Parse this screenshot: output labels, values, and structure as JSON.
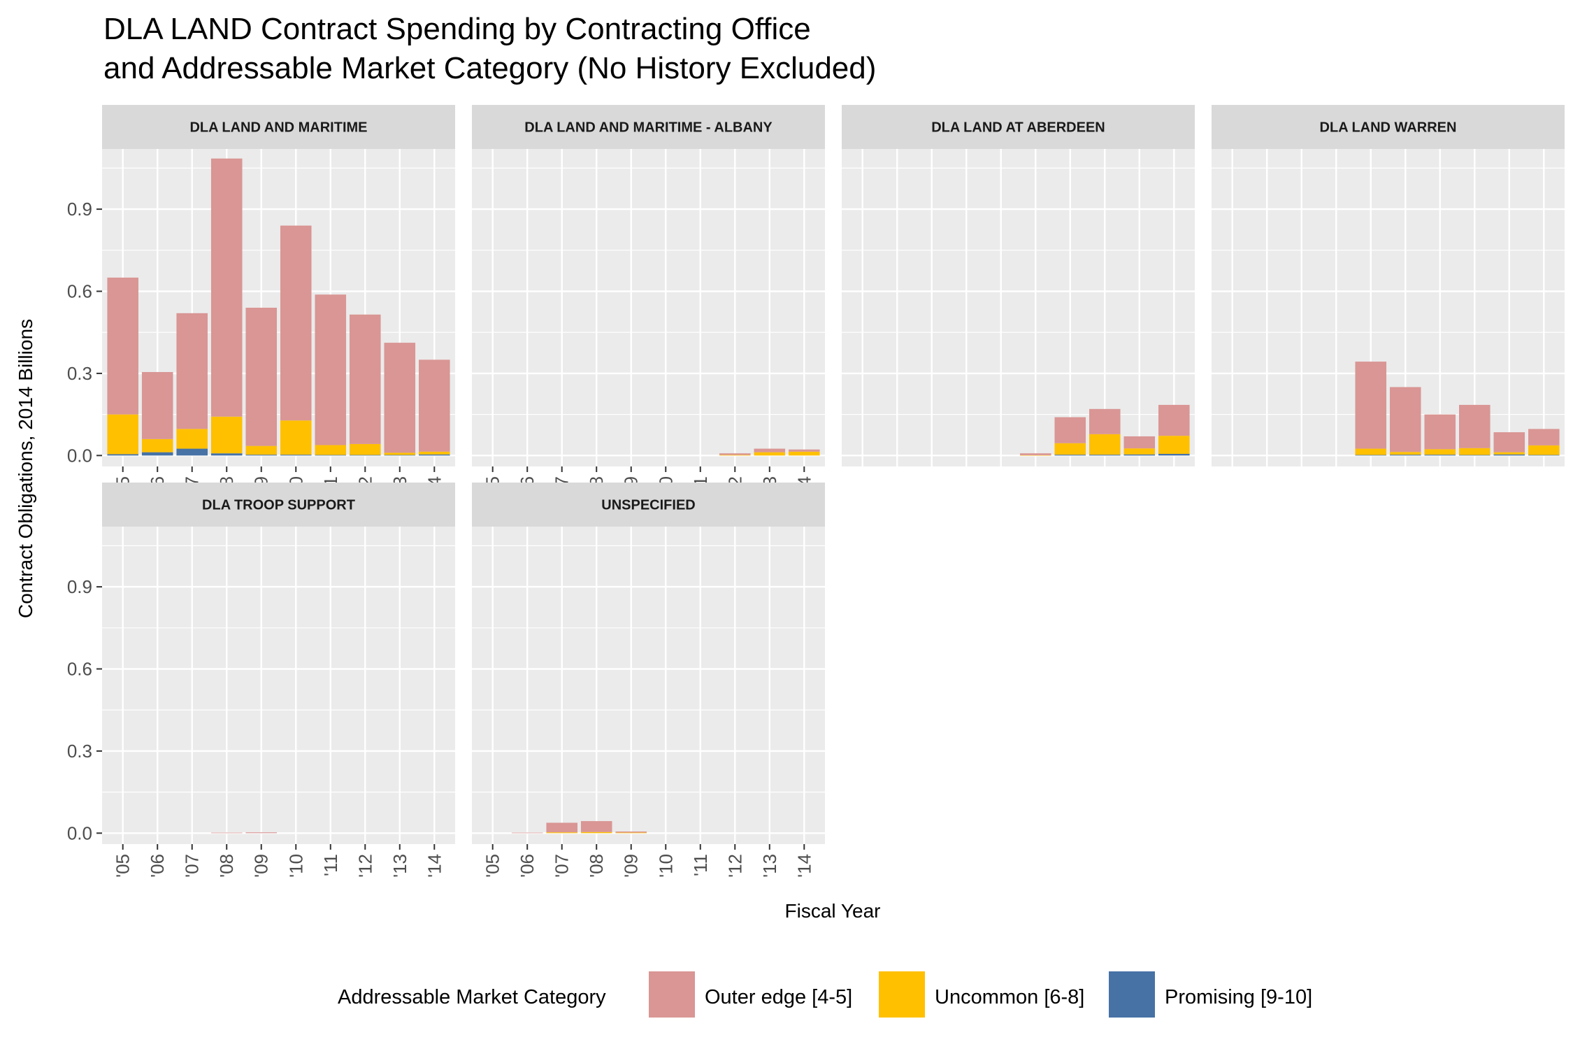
{
  "chart_data": {
    "type": "bar",
    "stacked": true,
    "facet_layout": "4 columns x 2 rows",
    "title_lines": [
      "DLA LAND Contract Spending by Contracting Office",
      "and Addressable Market Category (No History Excluded)"
    ],
    "xlabel": "Fiscal Year",
    "ylabel": "Contract Obligations, 2014 Billions",
    "ylim": [
      -0.04,
      1.12
    ],
    "yticks": [
      0.0,
      0.3,
      0.6,
      0.9
    ],
    "ytick_labels": [
      "0.0",
      "0.3",
      "0.6",
      "0.9"
    ],
    "categories": [
      "'05",
      "'06",
      "'07",
      "'08",
      "'09",
      "'10",
      "'11",
      "'12",
      "'13",
      "'14"
    ],
    "grid": true,
    "legend": {
      "title": "Addressable Market Category",
      "position": "bottom",
      "items": [
        {
          "name": "Outer edge [4-5]",
          "color": "#D99694"
        },
        {
          "name": "Uncommon [6-8]",
          "color": "#FFC000"
        },
        {
          "name": "Promising [9-10]",
          "color": "#4672A6"
        }
      ]
    },
    "stack_order": [
      "Promising [9-10]",
      "Uncommon [6-8]",
      "Outer edge [4-5]"
    ],
    "panels": [
      {
        "title": "DLA LAND AND MARITIME",
        "series": [
          {
            "name": "Promising [9-10]",
            "values": [
              0.005,
              0.012,
              0.025,
              0.008,
              0.003,
              0.003,
              0.002,
              0.002,
              0.002,
              0.004
            ]
          },
          {
            "name": "Uncommon [6-8]",
            "values": [
              0.145,
              0.048,
              0.072,
              0.134,
              0.032,
              0.125,
              0.036,
              0.04,
              0.008,
              0.01
            ]
          },
          {
            "name": "Outer edge [4-5]",
            "values": [
              0.5,
              0.245,
              0.423,
              0.943,
              0.505,
              0.712,
              0.55,
              0.473,
              0.402,
              0.336
            ]
          }
        ]
      },
      {
        "title": "DLA LAND AND MARITIME - ALBANY",
        "series": [
          {
            "name": "Promising [9-10]",
            "values": [
              0,
              0,
              0,
              0,
              0,
              0,
              0,
              0,
              0,
              0
            ]
          },
          {
            "name": "Uncommon [6-8]",
            "values": [
              0,
              0,
              0,
              0,
              0,
              0,
              0,
              0.002,
              0.012,
              0.014
            ]
          },
          {
            "name": "Outer edge [4-5]",
            "values": [
              0,
              0,
              0,
              0,
              0,
              0,
              0,
              0.006,
              0.013,
              0.008
            ]
          }
        ]
      },
      {
        "title": "DLA LAND AT ABERDEEN",
        "series": [
          {
            "name": "Promising [9-10]",
            "values": [
              0,
              0,
              0,
              0,
              0,
              0,
              0.003,
              0.003,
              0.004,
              0.006
            ]
          },
          {
            "name": "Uncommon [6-8]",
            "values": [
              0,
              0,
              0,
              0,
              0,
              0.001,
              0.042,
              0.075,
              0.022,
              0.066
            ]
          },
          {
            "name": "Outer edge [4-5]",
            "values": [
              0,
              0,
              0,
              0,
              0,
              0.007,
              0.095,
              0.092,
              0.044,
              0.113
            ]
          }
        ]
      },
      {
        "title": "DLA LAND WARREN",
        "series": [
          {
            "name": "Promising [9-10]",
            "values": [
              0,
              0,
              0,
              0,
              0.002,
              0.003,
              0.003,
              0.002,
              0.004,
              0.002
            ]
          },
          {
            "name": "Uncommon [6-8]",
            "values": [
              0,
              0,
              0,
              0,
              0.023,
              0.01,
              0.02,
              0.025,
              0.008,
              0.035
            ]
          },
          {
            "name": "Outer edge [4-5]",
            "values": [
              0,
              0,
              0,
              0,
              0.318,
              0.237,
              0.127,
              0.158,
              0.073,
              0.06
            ]
          }
        ]
      },
      {
        "title": "DLA TROOP SUPPORT",
        "series": [
          {
            "name": "Promising [9-10]",
            "values": [
              0,
              0,
              0,
              0,
              0,
              0,
              0,
              0,
              0,
              0
            ]
          },
          {
            "name": "Uncommon [6-8]",
            "values": [
              0,
              0,
              0,
              0,
              0,
              0,
              0,
              0,
              0,
              0
            ]
          },
          {
            "name": "Outer edge [4-5]",
            "values": [
              0,
              0,
              0,
              0.002,
              0.003,
              0,
              0,
              0,
              0,
              0
            ]
          }
        ]
      },
      {
        "title": "UNSPECIFIED",
        "series": [
          {
            "name": "Promising [9-10]",
            "values": [
              0,
              0,
              0,
              0,
              0,
              0,
              0,
              0,
              0,
              0
            ]
          },
          {
            "name": "Uncommon [6-8]",
            "values": [
              0,
              0,
              0.003,
              0.004,
              0.002,
              0,
              0,
              0,
              0,
              0
            ]
          },
          {
            "name": "Outer edge [4-5]",
            "values": [
              0,
              0.002,
              0.035,
              0.04,
              0.004,
              0,
              0,
              0,
              0,
              0
            ]
          }
        ]
      }
    ]
  }
}
